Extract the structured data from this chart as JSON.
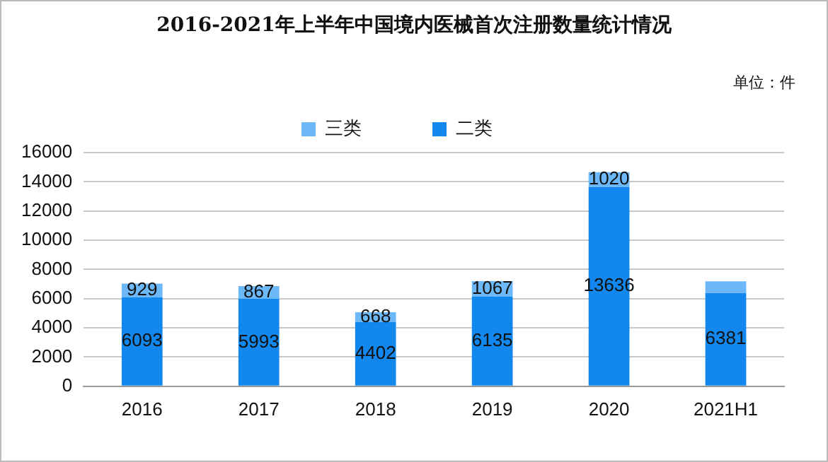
{
  "chart_data": {
    "type": "bar",
    "title": "2016-2021年上半年中国境内医械首次注册数量统计情况",
    "categories": [
      "2016",
      "2017",
      "2018",
      "2019",
      "2020",
      "2021H1"
    ],
    "series": [
      {
        "name": "二类",
        "color": "#1288ee",
        "values": [
          6093,
          5993,
          4402,
          6135,
          13636,
          6381
        ],
        "value_labels": [
          "6093",
          "5993",
          "4402",
          "6135",
          "13636",
          "6381"
        ]
      },
      {
        "name": "三类",
        "color": "#6cb8f8",
        "values": [
          929,
          867,
          668,
          1067,
          1020,
          800
        ],
        "value_labels": [
          "929",
          "867",
          "668",
          "1067",
          "1020",
          null
        ]
      }
    ],
    "stacked": true,
    "ylim": [
      0,
      16000
    ],
    "yticks": [
      0,
      2000,
      4000,
      6000,
      8000,
      10000,
      12000,
      14000,
      16000
    ],
    "grid": "y",
    "legend": "top",
    "annotations": [
      "单位：件"
    ]
  }
}
